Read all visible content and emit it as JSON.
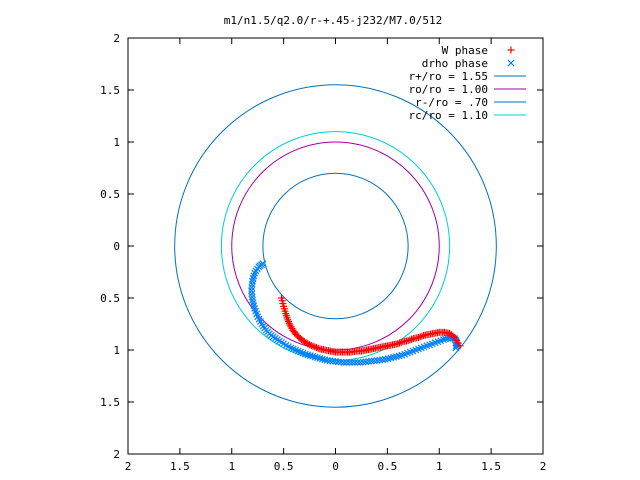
{
  "chart_data": {
    "type": "scatter",
    "title": "m1/n1.5/q2.0/r-+.45-j232/M7.0/512",
    "xlim": [
      -2,
      2
    ],
    "ylim": [
      -2,
      2
    ],
    "x_tick_values": [
      -2,
      -1.5,
      -1,
      -0.5,
      0,
      0.5,
      1,
      1.5,
      2
    ],
    "x_tick_labels": [
      "2",
      "1.5",
      "1",
      "0.5",
      "0",
      "0.5",
      "1",
      "1.5",
      "2"
    ],
    "y_tick_values": [
      2,
      1.5,
      1,
      0.5,
      0,
      -0.5,
      -1,
      -1.5,
      -2
    ],
    "y_tick_labels": [
      "2",
      "1.5",
      "1",
      "0.5",
      "0",
      "0.5",
      "1",
      "1.5",
      "2"
    ],
    "legend_position": "top-right",
    "grid": false,
    "series": [
      {
        "name": "W phase",
        "marker": "plus",
        "color": "#ff0000",
        "x": [
          -0.52,
          -0.5,
          -0.48,
          -0.46,
          -0.44,
          -0.41,
          -0.38,
          -0.34,
          -0.3,
          -0.25,
          -0.2,
          -0.15,
          -0.1,
          -0.05,
          0.0,
          0.05,
          0.1,
          0.15,
          0.2,
          0.25,
          0.3,
          0.35,
          0.4,
          0.45,
          0.5,
          0.55,
          0.6,
          0.65,
          0.7,
          0.75,
          0.8,
          0.85,
          0.9,
          0.95,
          1.0,
          1.05,
          1.1,
          1.15,
          1.2
        ],
        "y": [
          -0.5,
          -0.58,
          -0.65,
          -0.71,
          -0.76,
          -0.81,
          -0.85,
          -0.89,
          -0.92,
          -0.95,
          -0.97,
          -0.99,
          -1.0,
          -1.01,
          -1.02,
          -1.02,
          -1.02,
          -1.02,
          -1.01,
          -1.01,
          -1.0,
          -0.99,
          -0.98,
          -0.97,
          -0.96,
          -0.95,
          -0.94,
          -0.92,
          -0.91,
          -0.89,
          -0.88,
          -0.86,
          -0.85,
          -0.84,
          -0.83,
          -0.83,
          -0.84,
          -0.88,
          -0.96
        ]
      },
      {
        "name": "drho phase",
        "marker": "cross",
        "color": "#0080ff",
        "x": [
          -0.7,
          -0.74,
          -0.78,
          -0.8,
          -0.81,
          -0.8,
          -0.78,
          -0.75,
          -0.71,
          -0.67,
          -0.62,
          -0.56,
          -0.5,
          -0.43,
          -0.36,
          -0.29,
          -0.22,
          -0.15,
          -0.08,
          0.0,
          0.08,
          0.16,
          0.24,
          0.32,
          0.4,
          0.48,
          0.56,
          0.64,
          0.72,
          0.8,
          0.88,
          0.96,
          1.04,
          1.1,
          1.15,
          1.17,
          1.16
        ],
        "y": [
          -0.17,
          -0.2,
          -0.26,
          -0.34,
          -0.43,
          -0.52,
          -0.6,
          -0.68,
          -0.75,
          -0.81,
          -0.86,
          -0.9,
          -0.94,
          -0.98,
          -1.01,
          -1.04,
          -1.06,
          -1.08,
          -1.1,
          -1.11,
          -1.12,
          -1.12,
          -1.12,
          -1.11,
          -1.1,
          -1.09,
          -1.07,
          -1.05,
          -1.02,
          -0.99,
          -0.96,
          -0.93,
          -0.9,
          -0.88,
          -0.89,
          -0.93,
          -0.98
        ]
      }
    ],
    "circles": [
      {
        "name": "r+/ro = 1.55",
        "radius": 1.55,
        "color": "#0072bd"
      },
      {
        "name": "ro/ro = 1.00",
        "radius": 1.0,
        "color": "#a000a0"
      },
      {
        "name": "r-/ro = .70",
        "radius": 0.7,
        "color": "#0072bd"
      },
      {
        "name": "rc/ro = 1.10",
        "radius": 1.1,
        "color": "#00d0d0"
      }
    ]
  }
}
